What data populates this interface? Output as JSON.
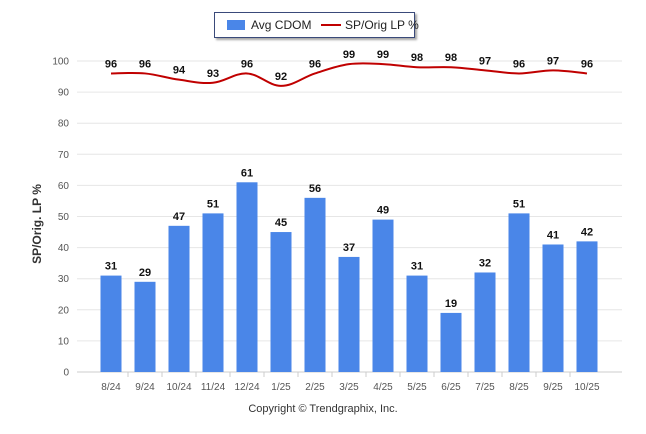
{
  "legend": {
    "bar_label": "Avg CDOM",
    "line_label": "SP/Orig LP %"
  },
  "footer": {
    "copyright": "Copyright © Trendgraphix, Inc."
  },
  "colors": {
    "bar": "#4a86e8",
    "line": "#c00000",
    "grid": "#e6e6e6",
    "axis": "#cccccc"
  },
  "chart_data": {
    "type": "bar+line",
    "title": "",
    "xlabel": "",
    "ylabel": "SP/Orig. LP %",
    "ylim": [
      0,
      100
    ],
    "yticks": [
      0,
      10,
      20,
      30,
      40,
      50,
      60,
      70,
      80,
      90,
      100
    ],
    "categories": [
      "8/24",
      "9/24",
      "10/24",
      "11/24",
      "12/24",
      "1/25",
      "2/25",
      "3/25",
      "4/25",
      "5/25",
      "6/25",
      "7/25",
      "8/25",
      "9/25",
      "10/25"
    ],
    "series": [
      {
        "name": "Avg CDOM",
        "kind": "bar",
        "values": [
          31,
          29,
          47,
          51,
          61,
          45,
          56,
          37,
          49,
          31,
          19,
          32,
          51,
          41,
          42
        ]
      },
      {
        "name": "SP/Orig LP %",
        "kind": "line",
        "values": [
          96,
          96,
          94,
          93,
          96,
          92,
          96,
          99,
          99,
          98,
          98,
          97,
          96,
          97,
          96
        ]
      }
    ],
    "grid": true,
    "legend_position": "top-center"
  }
}
